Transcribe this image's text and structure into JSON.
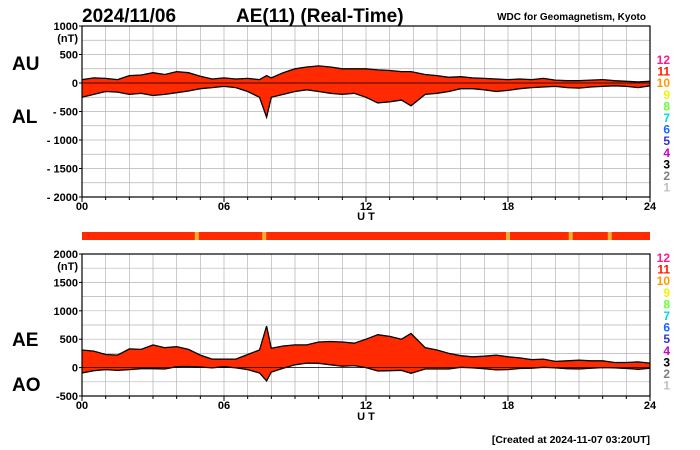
{
  "header": {
    "date": "2024/11/06",
    "title": "AE(11) (Real-Time)",
    "source": "WDC for Geomagnetism, Kyoto",
    "created": "[Created at 2024-11-07 03:20UT]"
  },
  "colors": {
    "fill": "#ff2a00",
    "line": "#000000",
    "grid": "#b4b4b4",
    "bar": "#ff2a00",
    "bar_flag": "#e8b030"
  },
  "station_counts": [
    {
      "label": "12",
      "color": "#ff1a8c"
    },
    {
      "label": "11",
      "color": "#ff1a00"
    },
    {
      "label": "10",
      "color": "#ff9900"
    },
    {
      "label": "9",
      "color": "#f2f200"
    },
    {
      "label": "8",
      "color": "#66ff33"
    },
    {
      "label": "7",
      "color": "#00d9d9"
    },
    {
      "label": "6",
      "color": "#1a66ff"
    },
    {
      "label": "5",
      "color": "#3333cc"
    },
    {
      "label": "4",
      "color": "#cc00cc"
    },
    {
      "label": "3",
      "color": "#000000"
    },
    {
      "label": "2",
      "color": "#808080"
    },
    {
      "label": "1",
      "color": "#c0c0c0"
    }
  ],
  "chart_data": [
    {
      "type": "area",
      "panel": "AU/AL",
      "xlabel": "U T",
      "xlim": [
        0,
        24
      ],
      "xticks": [
        "00",
        "06",
        "12",
        "18",
        "24"
      ],
      "ylim": [
        -2000,
        1000
      ],
      "yticks": [
        "1000",
        "500",
        "0",
        "- 500",
        "- 1000",
        "- 1500",
        "- 2000"
      ],
      "yunit": "(nT)",
      "series_tags": [
        "AU",
        "AL"
      ],
      "x": [
        0,
        0.5,
        1,
        1.5,
        2,
        2.5,
        3,
        3.5,
        4,
        4.5,
        5,
        5.5,
        6,
        6.5,
        7,
        7.5,
        7.8,
        8,
        8.5,
        9,
        9.5,
        10,
        10.5,
        11,
        11.5,
        12,
        12.5,
        13,
        13.5,
        13.9,
        14.5,
        15,
        15.5,
        16,
        16.5,
        17,
        17.5,
        18,
        18.5,
        19,
        19.5,
        20,
        20.5,
        21,
        21.5,
        22,
        22.5,
        23,
        23.5,
        24
      ],
      "series": [
        {
          "name": "AU",
          "values": [
            60,
            90,
            80,
            60,
            130,
            140,
            180,
            150,
            200,
            180,
            120,
            70,
            90,
            70,
            80,
            60,
            130,
            90,
            180,
            250,
            280,
            300,
            280,
            250,
            250,
            250,
            230,
            220,
            200,
            200,
            150,
            130,
            100,
            110,
            90,
            80,
            70,
            60,
            70,
            60,
            80,
            50,
            40,
            40,
            50,
            60,
            40,
            30,
            20,
            30
          ]
        },
        {
          "name": "AL",
          "values": [
            -250,
            -200,
            -150,
            -160,
            -200,
            -180,
            -220,
            -200,
            -170,
            -140,
            -100,
            -80,
            -60,
            -80,
            -150,
            -250,
            -600,
            -250,
            -200,
            -150,
            -120,
            -150,
            -180,
            -200,
            -180,
            -250,
            -350,
            -330,
            -300,
            -400,
            -200,
            -180,
            -150,
            -100,
            -100,
            -120,
            -150,
            -130,
            -100,
            -80,
            -70,
            -60,
            -80,
            -90,
            -70,
            -60,
            -50,
            -60,
            -80,
            -50
          ]
        }
      ]
    },
    {
      "type": "area",
      "panel": "AE/AO",
      "xlabel": "U T",
      "xlim": [
        0,
        24
      ],
      "xticks": [
        "00",
        "06",
        "12",
        "18",
        "24"
      ],
      "ylim": [
        -500,
        2000
      ],
      "yticks": [
        "2000",
        "1500",
        "1000",
        "500",
        "0",
        "-500"
      ],
      "yunit": "(nT)",
      "series_tags": [
        "AE",
        "AO"
      ],
      "x": [
        0,
        0.5,
        1,
        1.5,
        2,
        2.5,
        3,
        3.5,
        4,
        4.5,
        5,
        5.5,
        6,
        6.5,
        7,
        7.5,
        7.8,
        8,
        8.5,
        9,
        9.5,
        10,
        10.5,
        11,
        11.5,
        12,
        12.5,
        13,
        13.5,
        13.9,
        14.5,
        15,
        15.5,
        16,
        16.5,
        17,
        17.5,
        18,
        18.5,
        19,
        19.5,
        20,
        20.5,
        21,
        21.5,
        22,
        22.5,
        23,
        23.5,
        24
      ],
      "series": [
        {
          "name": "AE",
          "values": [
            310,
            290,
            230,
            220,
            330,
            320,
            400,
            350,
            370,
            320,
            220,
            150,
            150,
            150,
            230,
            310,
            730,
            340,
            380,
            400,
            400,
            450,
            460,
            450,
            430,
            500,
            580,
            550,
            500,
            600,
            350,
            310,
            250,
            210,
            190,
            200,
            220,
            190,
            170,
            140,
            150,
            110,
            120,
            130,
            120,
            120,
            90,
            90,
            100,
            80
          ]
        },
        {
          "name": "AO",
          "values": [
            -95,
            -55,
            -35,
            -50,
            -35,
            -20,
            -20,
            -25,
            15,
            20,
            10,
            -5,
            15,
            -5,
            -35,
            -95,
            -235,
            -80,
            -10,
            50,
            80,
            75,
            50,
            25,
            35,
            0,
            -60,
            -55,
            -50,
            -100,
            -25,
            -25,
            -25,
            5,
            -5,
            -20,
            -40,
            -35,
            -15,
            -10,
            5,
            -5,
            -20,
            -25,
            -10,
            0,
            -5,
            -15,
            -30,
            -10
          ]
        }
      ]
    }
  ],
  "coverage_bar": {
    "base": "bar",
    "flag_hours": [
      4.85,
      7.7,
      18.0,
      20.65,
      22.3
    ]
  }
}
